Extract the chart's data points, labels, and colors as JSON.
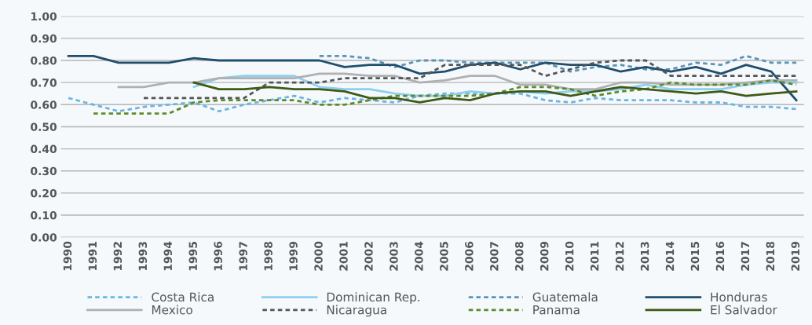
{
  "chart_data": {
    "type": "line",
    "categories": [
      "1990",
      "1991",
      "1992",
      "1993",
      "1994",
      "1995",
      "1996",
      "1997",
      "1998",
      "1999",
      "2000",
      "2001",
      "2002",
      "2003",
      "2004",
      "2005",
      "2006",
      "2007",
      "2008",
      "2009",
      "2010",
      "2011",
      "2012",
      "2013",
      "2014",
      "2015",
      "2016",
      "2017",
      "2018",
      "2019"
    ],
    "ylim": [
      0,
      1
    ],
    "yticks": [
      {
        "value": 0,
        "label": "0.00"
      },
      {
        "value": 0.1,
        "label": "0.10"
      },
      {
        "value": 0.2,
        "label": "0.20"
      },
      {
        "value": 0.3,
        "label": "0.30"
      },
      {
        "value": 0.4,
        "label": "0.40"
      },
      {
        "value": 0.5,
        "label": "0.50"
      },
      {
        "value": 0.6,
        "label": "0.60"
      },
      {
        "value": 0.7,
        "label": "0.70"
      },
      {
        "value": 0.8,
        "label": "0.80"
      },
      {
        "value": 0.9,
        "label": "0.90"
      },
      {
        "value": 1,
        "label": "1.00"
      }
    ],
    "grid": "y",
    "legend": "bottom",
    "series": [
      {
        "name": "Costa Rica",
        "color": "#6cb4e4",
        "line_style": "dotted",
        "values": [
          0.63,
          0.6,
          0.57,
          0.59,
          0.6,
          0.61,
          0.57,
          0.6,
          0.62,
          0.64,
          0.61,
          0.63,
          0.62,
          0.61,
          0.64,
          0.65,
          0.65,
          0.65,
          0.65,
          0.62,
          0.61,
          0.63,
          0.62,
          0.62,
          0.62,
          0.61,
          0.61,
          0.59,
          0.59,
          0.58
        ]
      },
      {
        "name": "Dominican Rep.",
        "color": "#8ecff0",
        "line_style": "solid",
        "values": [
          null,
          null,
          null,
          null,
          null,
          0.68,
          0.72,
          0.73,
          0.73,
          0.73,
          0.68,
          0.67,
          0.67,
          0.65,
          0.64,
          0.64,
          0.66,
          0.65,
          0.66,
          0.65,
          0.66,
          0.66,
          0.67,
          0.69,
          0.67,
          0.67,
          0.67,
          0.69,
          0.7,
          0.7
        ]
      },
      {
        "name": "Guatemala",
        "color": "#5b93b5",
        "line_style": "dotted",
        "values": [
          null,
          null,
          null,
          null,
          null,
          null,
          null,
          null,
          null,
          null,
          0.82,
          0.82,
          0.81,
          0.77,
          0.8,
          0.8,
          0.79,
          0.79,
          0.79,
          0.79,
          0.75,
          0.77,
          0.78,
          0.76,
          0.76,
          0.79,
          0.78,
          0.82,
          0.79,
          0.79
        ]
      },
      {
        "name": "Honduras",
        "color": "#1f4e6e",
        "line_style": "solid",
        "values": [
          0.82,
          0.82,
          0.79,
          0.79,
          0.79,
          0.81,
          0.8,
          0.8,
          0.8,
          0.8,
          0.8,
          0.77,
          0.78,
          0.78,
          0.74,
          0.75,
          0.78,
          0.79,
          0.76,
          0.79,
          0.78,
          0.78,
          0.75,
          0.77,
          0.75,
          0.77,
          0.74,
          0.78,
          0.75,
          0.62
        ]
      },
      {
        "name": "Mexico",
        "color": "#b0b0b0",
        "line_style": "solid",
        "values": [
          null,
          null,
          0.68,
          0.68,
          0.7,
          0.7,
          0.72,
          0.72,
          0.72,
          0.72,
          0.74,
          0.74,
          0.73,
          0.73,
          0.7,
          0.71,
          0.73,
          0.73,
          0.69,
          0.69,
          0.67,
          0.67,
          0.7,
          0.7,
          0.69,
          0.69,
          0.69,
          0.7,
          0.71,
          0.71
        ]
      },
      {
        "name": "Nicaragua",
        "color": "#555555",
        "line_style": "dotted",
        "values": [
          null,
          null,
          null,
          0.63,
          0.63,
          0.63,
          0.63,
          0.63,
          0.7,
          0.7,
          0.7,
          0.72,
          0.72,
          0.72,
          0.72,
          0.78,
          0.78,
          0.78,
          0.78,
          0.73,
          0.76,
          0.79,
          0.8,
          0.8,
          0.73,
          0.73,
          0.73,
          0.73,
          0.73,
          0.73
        ]
      },
      {
        "name": "Panama",
        "color": "#5e8a2a",
        "line_style": "dotted",
        "values": [
          null,
          0.56,
          0.56,
          0.56,
          0.56,
          0.61,
          0.62,
          0.62,
          0.62,
          0.62,
          0.6,
          0.6,
          0.62,
          0.64,
          0.64,
          0.64,
          0.64,
          0.65,
          0.68,
          0.68,
          0.67,
          0.64,
          0.66,
          0.67,
          0.7,
          0.69,
          0.69,
          0.69,
          0.71,
          0.69
        ]
      },
      {
        "name": "El Salvador",
        "color": "#3e5a15",
        "line_style": "solid",
        "values": [
          null,
          null,
          null,
          null,
          null,
          0.7,
          0.67,
          0.67,
          0.68,
          0.67,
          0.67,
          0.66,
          0.63,
          0.63,
          0.61,
          0.63,
          0.62,
          0.65,
          0.66,
          0.66,
          0.64,
          0.66,
          0.68,
          0.67,
          0.66,
          0.65,
          0.66,
          0.64,
          0.65,
          0.66
        ]
      }
    ]
  }
}
